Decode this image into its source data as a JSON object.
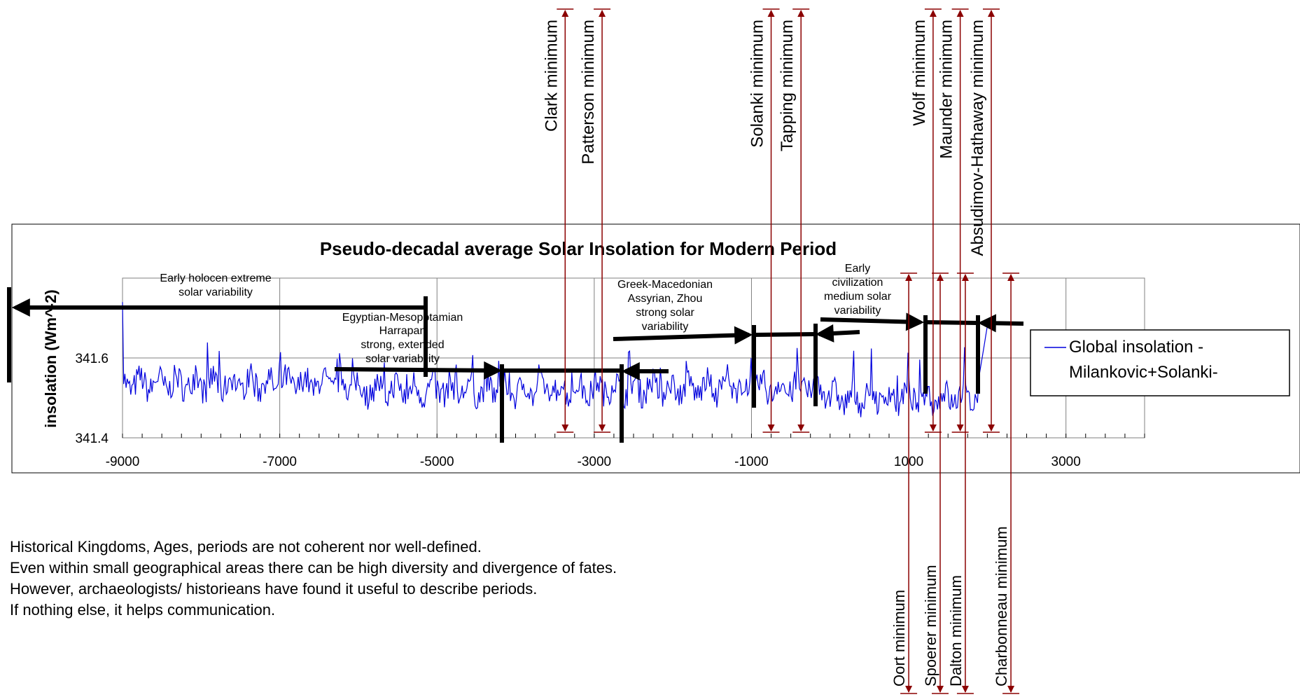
{
  "chart_data": {
    "type": "line",
    "title": "Pseudo-decadal average Solar Insolation for Modern Period",
    "xlabel": "",
    "ylabel": "insolation (Wm^-2)",
    "xlim": [
      -9000,
      4000
    ],
    "ylim": [
      341.4,
      341.8
    ],
    "x_ticks": [
      -9000,
      -7000,
      -5000,
      -3000,
      -1000,
      1000,
      3000
    ],
    "x_tick_labels": [
      "-9000",
      "-7000",
      "-5000",
      "-3000",
      "-1000",
      "1000",
      "3000"
    ],
    "y_ticks": [
      341.4,
      341.6
    ],
    "y_tick_labels": [
      "341.4",
      "341.6"
    ],
    "grid": true,
    "legend_position": "right",
    "series": [
      {
        "name": "Global insolation - Milankovic+Solanki-",
        "color": "#0000dd"
      }
    ],
    "minima_above": [
      {
        "label": "Clark minimum",
        "x": -3370
      },
      {
        "label": "Patterson minimum",
        "x": -2900
      },
      {
        "label": "Solanki  minimum",
        "x": -750
      },
      {
        "label": "Tapping minimum",
        "x": -370
      },
      {
        "label": "Wolf minimum",
        "x": 1310
      },
      {
        "label": "Maunder minimum",
        "x": 1655
      },
      {
        "label": "Absudimov-Hathaway minimum",
        "x": 2050
      }
    ],
    "minima_below": [
      {
        "label": "Oort minimum",
        "x": 1000
      },
      {
        "label": "Spoerer minimum",
        "x": 1400
      },
      {
        "label": "Dalton minimum",
        "x": 1720
      },
      {
        "label": "Charbonneau minimum",
        "x": 2300
      }
    ],
    "periods": [
      {
        "label_lines": [
          "Early holocen extreme",
          "solar variability"
        ]
      },
      {
        "label_lines": [
          "Egyptian-Mesopotamian",
          "Harrapan",
          "strong, extended",
          "solar variability"
        ]
      },
      {
        "label_lines": [
          "Greek-Macedonian",
          "Assyrian, Zhou",
          "strong solar",
          "variability"
        ]
      },
      {
        "label_lines": [
          "Early",
          "civilization",
          "medium solar",
          "variability"
        ]
      }
    ],
    "legend": {
      "line1": "Global insolation -",
      "line2": "Milankovic+Solanki-"
    }
  },
  "colors": {
    "series": "#0000dd",
    "minima_arrow": "#8b0000",
    "period_arrow": "#000000",
    "grid": "#808080"
  },
  "notes": [
    "Historical Kingdoms, Ages, periods are not coherent nor well-defined.",
    "Even within small geographical areas there can be high diversity and divergence of fates.",
    "However, archaeologists/ historieans have found it useful to describe periods.",
    "If nothing else, it helps communication."
  ]
}
